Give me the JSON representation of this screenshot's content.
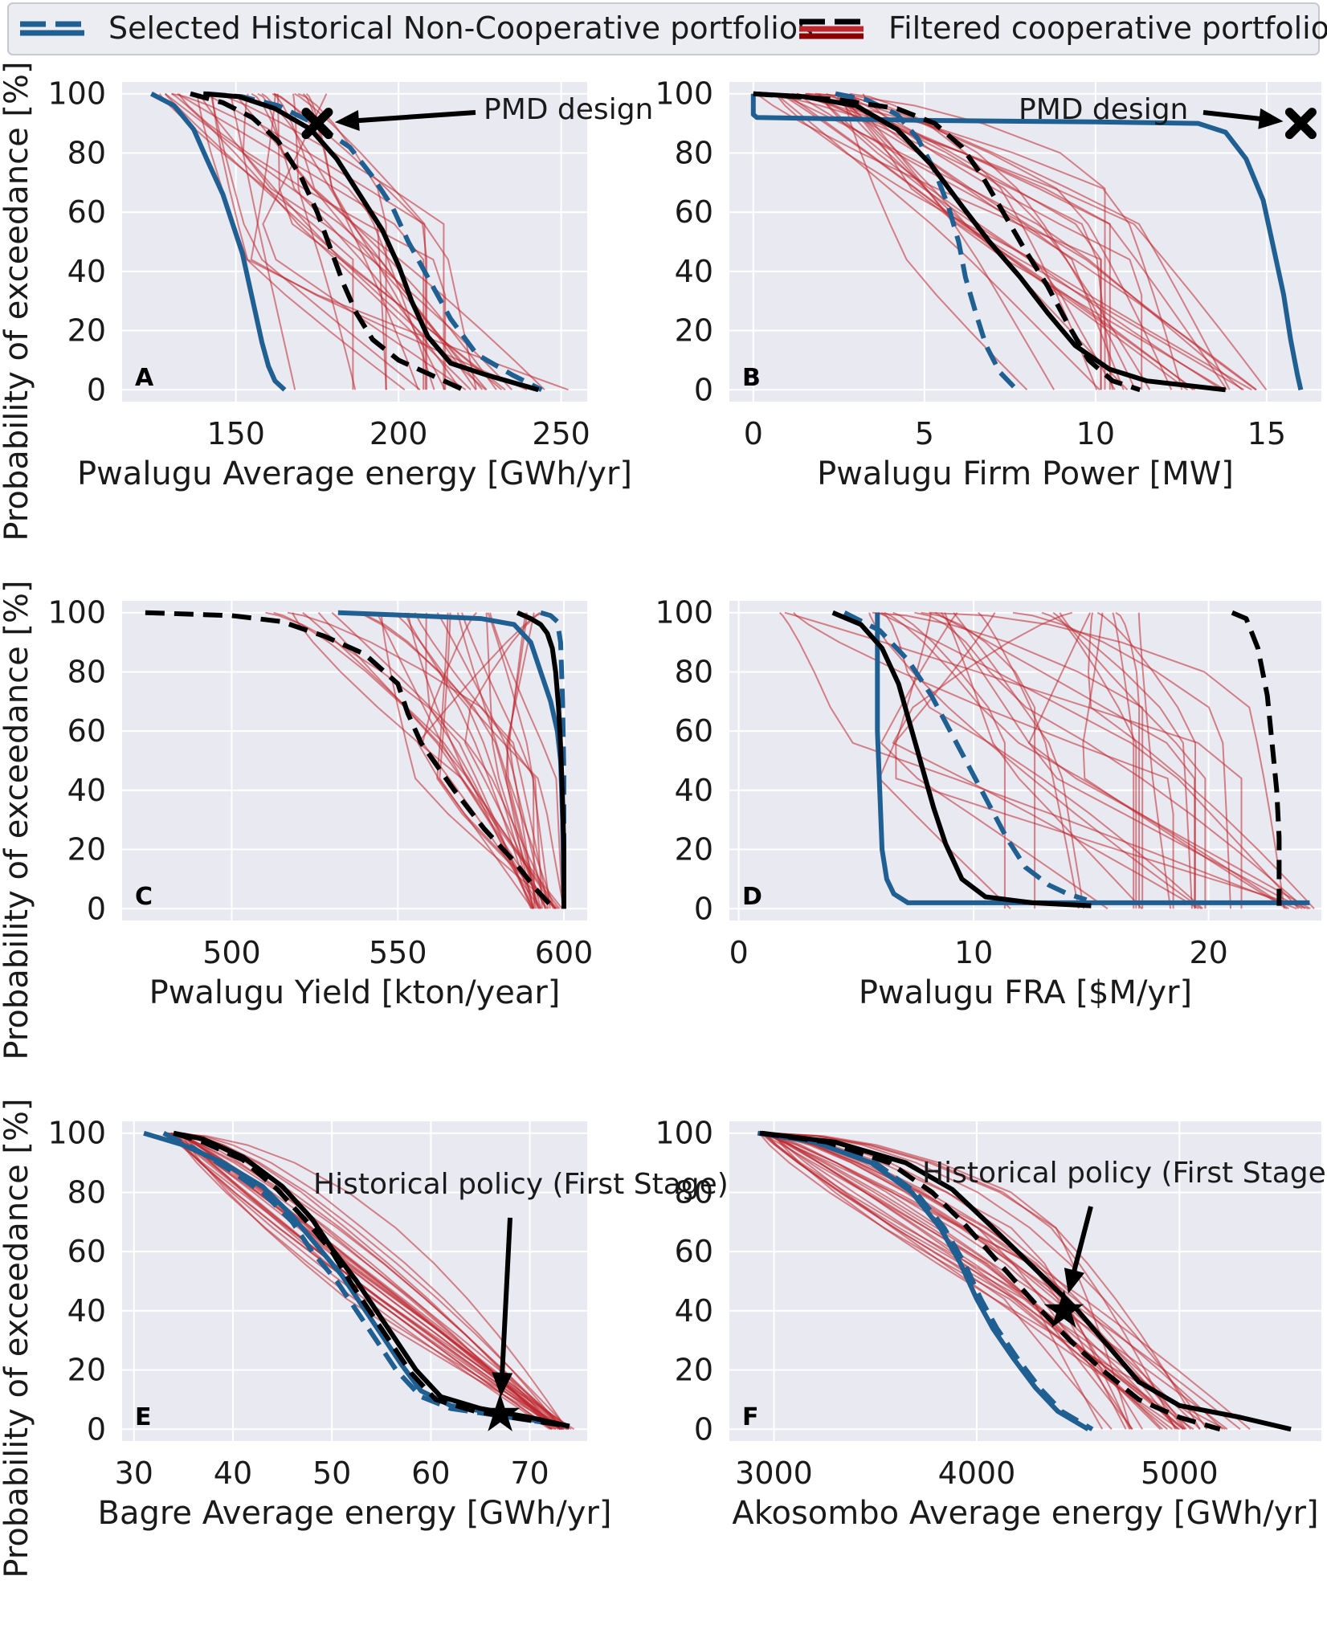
{
  "legend": {
    "entries": [
      {
        "label": "Selected Historical Non-Cooperative portfolios",
        "style": "blue solid / blue dashed"
      },
      {
        "label": "Filtered cooperative portfolios",
        "style": "black solid / black dashed / thin red"
      }
    ]
  },
  "colors": {
    "panel_bg": "#e9e9f1",
    "grid": "#ffffff",
    "blue": "#1f5f91",
    "black": "#000000",
    "red": "#c0262d"
  },
  "y_axis_label": "Probability of exceedance [%]",
  "chart_data": [
    {
      "type": "line",
      "panel_label": "A",
      "xlabel": "Pwalugu Average energy [GWh/yr]",
      "ylabel": "Probability of exceedance [%]",
      "xlim": [
        115,
        258
      ],
      "ylim": [
        -4,
        104
      ],
      "xticks": [
        "150",
        "200",
        "250"
      ],
      "yticks": [
        "0",
        "20",
        "40",
        "60",
        "80",
        "100"
      ],
      "annotation": {
        "text": "PMD design",
        "marker": "X",
        "point": [
          175,
          90
        ]
      },
      "series": [
        {
          "name": "Non-Cooperative (solid)",
          "color": "blue",
          "dash": false,
          "x": [
            124,
            131,
            137,
            141,
            146,
            149,
            152,
            154,
            156,
            158,
            160,
            162,
            165
          ],
          "y": [
            100,
            96,
            88,
            78,
            66,
            56,
            46,
            36,
            26,
            16,
            8,
            3,
            0
          ]
        },
        {
          "name": "Non-Cooperative (dashed)",
          "color": "blue",
          "dash": true,
          "x": [
            141,
            152,
            163,
            174,
            185,
            192,
            198,
            203,
            209,
            216,
            224,
            235,
            244
          ],
          "y": [
            100,
            99,
            96,
            90,
            82,
            72,
            62,
            50,
            38,
            24,
            12,
            5,
            0
          ]
        },
        {
          "name": "Cooperative (solid)",
          "color": "black",
          "dash": false,
          "x": [
            140,
            151,
            162,
            173,
            181,
            188,
            195,
            200,
            204,
            209,
            216,
            227,
            243
          ],
          "y": [
            100,
            99,
            95,
            88,
            78,
            66,
            54,
            42,
            30,
            18,
            9,
            5,
            0
          ]
        },
        {
          "name": "Cooperative (dashed)",
          "color": "black",
          "dash": true,
          "x": [
            136,
            146,
            155,
            163,
            170,
            175,
            179,
            183,
            187,
            192,
            200,
            210,
            220
          ],
          "y": [
            100,
            97,
            92,
            84,
            72,
            60,
            48,
            36,
            26,
            17,
            10,
            5,
            0
          ]
        }
      ],
      "red_band": {
        "count": 30,
        "start_range": [
          125,
          178
        ],
        "end_range": [
          165,
          254
        ],
        "mid_range": [
          150,
          215
        ]
      }
    },
    {
      "type": "line",
      "panel_label": "B",
      "xlabel": "Pwalugu Firm Power [MW]",
      "ylabel": "",
      "xlim": [
        -0.7,
        16.6
      ],
      "ylim": [
        -4,
        104
      ],
      "xticks": [
        "0",
        "5",
        "10",
        "15"
      ],
      "yticks": [
        "0",
        "20",
        "40",
        "60",
        "80",
        "100"
      ],
      "annotation": {
        "text": "PMD design",
        "marker": "X",
        "point": [
          16,
          90
        ]
      },
      "series": [
        {
          "name": "Non-Cooperative (solid)",
          "color": "blue",
          "dash": false,
          "x": [
            0,
            0,
            0.1,
            5,
            10,
            13,
            13.8,
            14.4,
            14.9,
            15.2,
            15.5,
            15.7,
            15.9,
            16
          ],
          "y": [
            100,
            93,
            92,
            91,
            90.5,
            90,
            87,
            78,
            64,
            48,
            32,
            17,
            5,
            0
          ]
        },
        {
          "name": "Non-Cooperative (dashed)",
          "color": "blue",
          "dash": true,
          "x": [
            2.4,
            3.3,
            4.2,
            4.8,
            5.3,
            5.7,
            6.0,
            6.2,
            6.5,
            6.8,
            7.2,
            7.7
          ],
          "y": [
            100,
            98,
            93,
            85,
            74,
            62,
            50,
            38,
            26,
            15,
            6,
            0
          ]
        },
        {
          "name": "Cooperative (solid)",
          "color": "black",
          "dash": false,
          "x": [
            0,
            1.5,
            3,
            4.2,
            5.2,
            6.1,
            6.9,
            7.8,
            8.6,
            9.4,
            10.4,
            11.5,
            13.8
          ],
          "y": [
            100,
            99,
            96,
            88,
            76,
            62,
            50,
            38,
            26,
            15,
            7,
            3,
            0
          ]
        },
        {
          "name": "Cooperative (dashed)",
          "color": "black",
          "dash": true,
          "x": [
            0,
            2.5,
            4.2,
            5.3,
            6.1,
            6.7,
            7.3,
            7.9,
            8.6,
            9.2,
            9.8,
            10.5,
            11.3
          ],
          "y": [
            100,
            98,
            95,
            90,
            82,
            72,
            60,
            48,
            35,
            22,
            10,
            3,
            0
          ]
        }
      ],
      "red_band": {
        "count": 30,
        "start_range": [
          0,
          3.5
        ],
        "end_range": [
          6.5,
          15.5
        ],
        "mid_range": [
          4.5,
          11.5
        ]
      }
    },
    {
      "type": "line",
      "panel_label": "C",
      "xlabel": "Pwalugu Yield [kton/year]",
      "ylabel": "Probability of exceedance [%]",
      "xlim": [
        467,
        607
      ],
      "ylim": [
        -4,
        104
      ],
      "xticks": [
        "500",
        "550",
        "600"
      ],
      "yticks": [
        "0",
        "20",
        "40",
        "60",
        "80",
        "100"
      ],
      "series": [
        {
          "name": "Non-Cooperative (solid)",
          "color": "blue",
          "dash": false,
          "x": [
            532,
            555,
            575,
            585,
            590,
            593,
            596,
            598,
            599,
            599.6,
            599.9,
            600
          ],
          "y": [
            100,
            99,
            98,
            96,
            90,
            80,
            70,
            60,
            50,
            30,
            10,
            0
          ]
        },
        {
          "name": "Non-Cooperative (dashed)",
          "color": "blue",
          "dash": true,
          "x": [
            593,
            596,
            598,
            599,
            599.6,
            600,
            600,
            600
          ],
          "y": [
            100,
            99,
            97,
            90,
            70,
            45,
            20,
            0
          ]
        },
        {
          "name": "Cooperative (solid)",
          "color": "black",
          "dash": false,
          "x": [
            586,
            590,
            593,
            595,
            596.5,
            597.5,
            598.4,
            599,
            599.5,
            600,
            600
          ],
          "y": [
            100,
            98,
            96,
            93,
            88,
            80,
            68,
            55,
            40,
            20,
            0
          ]
        },
        {
          "name": "Cooperative (dashed)",
          "color": "black",
          "dash": true,
          "x": [
            474,
            500,
            515,
            528,
            540,
            550,
            553,
            557,
            567,
            576,
            585,
            592,
            597
          ],
          "y": [
            100,
            99,
            97,
            92,
            86,
            76,
            66,
            56,
            40,
            27,
            16,
            6,
            0
          ]
        }
      ],
      "red_band": {
        "count": 30,
        "start_range": [
          510,
          595
        ],
        "end_range": [
          590,
          600
        ],
        "mid_range": [
          555,
          598
        ]
      }
    },
    {
      "type": "line",
      "panel_label": "D",
      "xlabel": "Pwalugu FRA [$M/yr]",
      "ylabel": "",
      "xlim": [
        -0.4,
        24.8
      ],
      "ylim": [
        -4,
        104
      ],
      "xticks": [
        "0",
        "10",
        "20"
      ],
      "yticks": [
        "0",
        "20",
        "40",
        "60",
        "80",
        "100"
      ],
      "series": [
        {
          "name": "Non-Cooperative (solid)",
          "color": "blue",
          "dash": false,
          "x": [
            5.9,
            5.9,
            5.9,
            6.0,
            6.1,
            6.3,
            6.6,
            7.2,
            10,
            15,
            20,
            24.3
          ],
          "y": [
            100,
            80,
            60,
            40,
            20,
            10,
            5,
            2,
            2,
            2,
            2,
            2
          ]
        },
        {
          "name": "Non-Cooperative (dashed)",
          "color": "blue",
          "dash": true,
          "x": [
            4.5,
            6,
            7.2,
            8.2,
            9.0,
            9.8,
            10.6,
            11.4,
            12.2,
            13.2,
            14.0,
            14.8
          ],
          "y": [
            100,
            94,
            84,
            72,
            60,
            48,
            36,
            24,
            14,
            8,
            5,
            3
          ]
        },
        {
          "name": "Cooperative (solid)",
          "color": "black",
          "dash": false,
          "x": [
            4.0,
            5.2,
            6.1,
            6.8,
            7.3,
            7.8,
            8.3,
            8.8,
            9.5,
            10.5,
            12.5,
            15.0
          ],
          "y": [
            100,
            96,
            88,
            76,
            62,
            48,
            34,
            22,
            10,
            4,
            2,
            1
          ]
        },
        {
          "name": "Cooperative (dashed)",
          "color": "black",
          "dash": true,
          "x": [
            21.0,
            21.6,
            22.1,
            22.5,
            22.7,
            22.9,
            23.0,
            23.0,
            23.0
          ],
          "y": [
            100,
            98,
            88,
            72,
            56,
            40,
            24,
            8,
            1
          ]
        }
      ],
      "red_band": {
        "count": 32,
        "start_range": [
          1,
          18
        ],
        "end_range": [
          7,
          24.5
        ],
        "mid_range": [
          4,
          22
        ]
      }
    },
    {
      "type": "line",
      "panel_label": "E",
      "xlabel": "Bagre Average energy [GWh/yr]",
      "ylabel": "Probability of exceedance [%]",
      "xlim": [
        28.8,
        75.8
      ],
      "ylim": [
        -4,
        104
      ],
      "xticks": [
        "30",
        "40",
        "50",
        "60",
        "70"
      ],
      "yticks": [
        "0",
        "20",
        "40",
        "60",
        "80",
        "100"
      ],
      "annotation": {
        "text": "Historical policy (First Stage)",
        "marker": "star",
        "point": [
          67,
          5
        ]
      },
      "series": [
        {
          "name": "Non-Cooperative (solid)",
          "color": "blue",
          "dash": false,
          "x": [
            31,
            35,
            39,
            43,
            46,
            48.5,
            51,
            53,
            55,
            57,
            59,
            62,
            67,
            74
          ],
          "y": [
            100,
            96,
            90,
            82,
            72,
            62,
            52,
            42,
            32,
            22,
            13,
            8,
            5,
            1
          ]
        },
        {
          "name": "Non-Cooperative (dashed)",
          "color": "blue",
          "dash": true,
          "x": [
            33,
            36,
            39.5,
            43,
            46,
            48,
            50.5,
            52.5,
            54.5,
            56.5,
            59,
            62,
            68,
            74
          ],
          "y": [
            100,
            95,
            88,
            80,
            70,
            60,
            50,
            40,
            30,
            20,
            11,
            7,
            4,
            1
          ]
        },
        {
          "name": "Cooperative (solid)",
          "color": "black",
          "dash": false,
          "x": [
            34,
            37,
            41,
            45,
            48,
            50,
            52.5,
            54.5,
            56.5,
            58.5,
            61,
            65,
            70,
            74
          ],
          "y": [
            100,
            98,
            92,
            82,
            71,
            61,
            50,
            40,
            30,
            20,
            11,
            7,
            4,
            1
          ]
        },
        {
          "name": "Cooperative (dashed)",
          "color": "black",
          "dash": true,
          "x": [
            34,
            37,
            41,
            44.5,
            47.5,
            50,
            52,
            54,
            56,
            58,
            60.5,
            64.5,
            70,
            74
          ],
          "y": [
            100,
            97,
            91,
            81,
            70,
            60,
            49,
            39,
            29,
            19,
            10,
            6,
            3,
            1
          ]
        }
      ],
      "red_band": {
        "count": 28,
        "start_range": [
          33,
          35
        ],
        "end_range": [
          72,
          74.5
        ],
        "mid_range": [
          51.5,
          54
        ]
      }
    },
    {
      "type": "line",
      "panel_label": "F",
      "xlabel": "Akosombo Average energy [GWh/yr]",
      "ylabel": "",
      "xlim": [
        2780,
        5700
      ],
      "ylim": [
        -4,
        104
      ],
      "xticks": [
        "3000",
        "4000",
        "5000"
      ],
      "yticks": [
        "0",
        "20",
        "40",
        "60",
        "80",
        "100"
      ],
      "annotation": {
        "text": "Historical policy (First Stage)",
        "marker": "star",
        "point": [
          4430,
          40
        ]
      },
      "series": [
        {
          "name": "Non-Cooperative (solid)",
          "color": "blue",
          "dash": false,
          "x": [
            2920,
            3200,
            3480,
            3680,
            3820,
            3920,
            4000,
            4080,
            4180,
            4290,
            4400,
            4550
          ],
          "y": [
            100,
            97,
            90,
            80,
            68,
            56,
            44,
            34,
            24,
            14,
            6,
            0
          ]
        },
        {
          "name": "Non-Cooperative (dashed)",
          "color": "blue",
          "dash": true,
          "x": [
            2930,
            3220,
            3500,
            3700,
            3840,
            3940,
            4020,
            4100,
            4200,
            4310,
            4420,
            4570
          ],
          "y": [
            100,
            97,
            90,
            80,
            68,
            56,
            44,
            34,
            24,
            14,
            6,
            0
          ]
        },
        {
          "name": "Cooperative (solid)",
          "color": "black",
          "dash": false,
          "x": [
            2940,
            3300,
            3650,
            3880,
            4050,
            4200,
            4350,
            4500,
            4650,
            4800,
            5000,
            5300,
            5550
          ],
          "y": [
            100,
            97,
            90,
            81,
            70,
            60,
            50,
            40,
            28,
            16,
            8,
            4,
            0
          ]
        },
        {
          "name": "Cooperative (dashed)",
          "color": "black",
          "dash": true,
          "x": [
            2930,
            3260,
            3570,
            3780,
            3930,
            4060,
            4190,
            4320,
            4460,
            4620,
            4800,
            5000,
            5200
          ],
          "y": [
            100,
            97,
            90,
            80,
            70,
            60,
            50,
            40,
            30,
            20,
            10,
            4,
            0
          ]
        }
      ],
      "red_band": {
        "count": 32,
        "start_range": [
          2930,
          3000
        ],
        "end_range": [
          4550,
          5450
        ],
        "mid_range": [
          4000,
          4350
        ]
      }
    }
  ]
}
